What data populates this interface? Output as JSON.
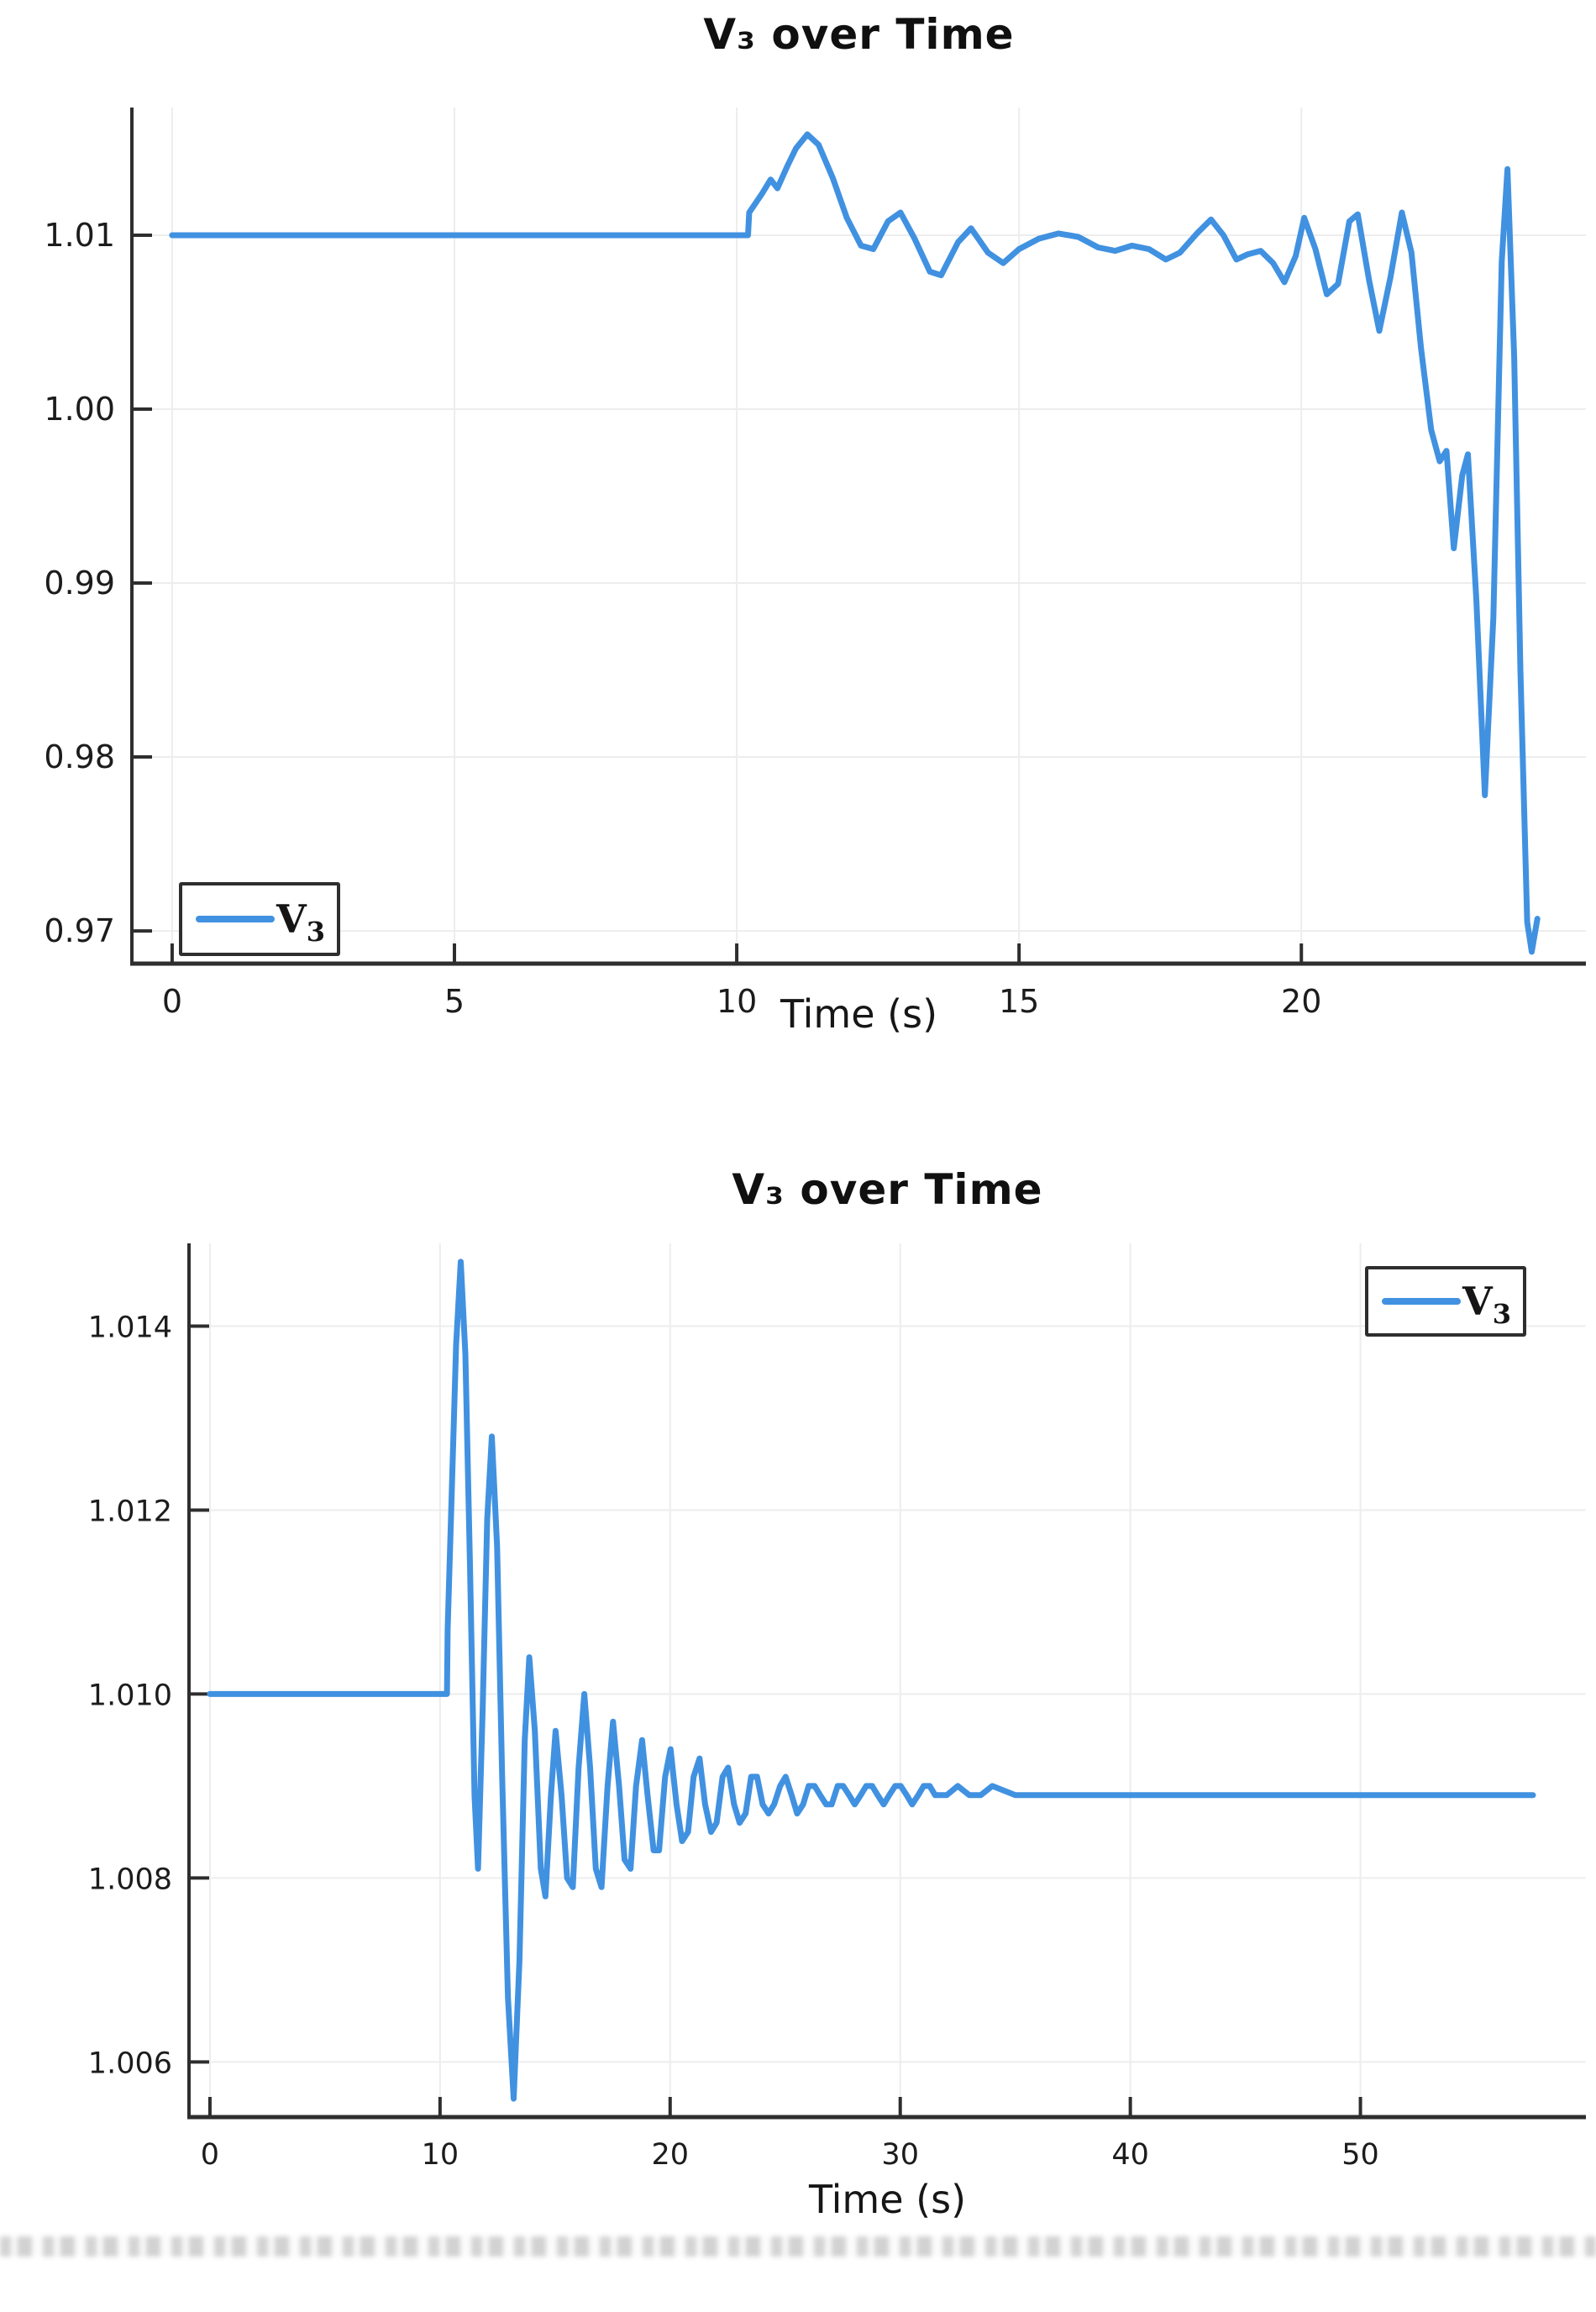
{
  "page": {
    "background": "#ffffff"
  },
  "chart_data": [
    {
      "type": "line",
      "title": "V₃ over Time",
      "xlabel": "Time (s)",
      "ylabel": "",
      "grid": true,
      "legend": {
        "label": "V₃",
        "label_main": "V",
        "label_sub": "3",
        "position": "bottom-left"
      },
      "line_color": "#4191E1",
      "grid_color": "#ededed",
      "axis_color": "#2e2e2e",
      "xlim": [
        -0.713,
        25.04
      ],
      "ylim": [
        0.96812,
        1.01734
      ],
      "x_ticks": [
        {
          "v": 0,
          "label": "0"
        },
        {
          "v": 5,
          "label": "5"
        },
        {
          "v": 10,
          "label": "10"
        },
        {
          "v": 15,
          "label": "15"
        },
        {
          "v": 20,
          "label": "20"
        }
      ],
      "y_ticks": [
        {
          "v": 1.01,
          "label": "1.01"
        },
        {
          "v": 1.0,
          "label": "1.00"
        },
        {
          "v": 0.99,
          "label": "0.99"
        },
        {
          "v": 0.98,
          "label": "0.98"
        },
        {
          "v": 0.97,
          "label": "0.97"
        }
      ],
      "series": [
        {
          "name": "V₃",
          "points": [
            [
              0,
              1.01
            ],
            [
              1,
              1.01
            ],
            [
              2,
              1.01
            ],
            [
              3,
              1.01
            ],
            [
              4,
              1.01
            ],
            [
              5,
              1.01
            ],
            [
              6,
              1.01
            ],
            [
              7,
              1.01
            ],
            [
              8,
              1.01
            ],
            [
              9,
              1.01
            ],
            [
              10.2,
              1.01
            ],
            [
              10.22,
              1.0113
            ],
            [
              10.45,
              1.0124
            ],
            [
              10.6,
              1.0132
            ],
            [
              10.72,
              1.0127
            ],
            [
              10.9,
              1.014
            ],
            [
              11.05,
              1.015
            ],
            [
              11.25,
              1.0158
            ],
            [
              11.45,
              1.0152
            ],
            [
              11.7,
              1.0133
            ],
            [
              11.95,
              1.011
            ],
            [
              12.2,
              1.0094
            ],
            [
              12.42,
              1.0092
            ],
            [
              12.68,
              1.0108
            ],
            [
              12.9,
              1.0113
            ],
            [
              13.15,
              1.0098
            ],
            [
              13.42,
              1.0079
            ],
            [
              13.62,
              1.0077
            ],
            [
              13.92,
              1.0096
            ],
            [
              14.15,
              1.0104
            ],
            [
              14.45,
              1.009
            ],
            [
              14.72,
              1.0084
            ],
            [
              15.0,
              1.0092
            ],
            [
              15.35,
              1.0098
            ],
            [
              15.7,
              1.0101
            ],
            [
              16.05,
              1.0099
            ],
            [
              16.4,
              1.0093
            ],
            [
              16.7,
              1.0091
            ],
            [
              17.0,
              1.0094
            ],
            [
              17.3,
              1.0092
            ],
            [
              17.6,
              1.0086
            ],
            [
              17.85,
              1.009
            ],
            [
              18.15,
              1.0101
            ],
            [
              18.4,
              1.0109
            ],
            [
              18.62,
              1.01
            ],
            [
              18.85,
              1.0086
            ],
            [
              19.05,
              1.0089
            ],
            [
              19.28,
              1.0091
            ],
            [
              19.5,
              1.0084
            ],
            [
              19.7,
              1.0073
            ],
            [
              19.9,
              1.0088
            ],
            [
              20.05,
              1.011
            ],
            [
              20.25,
              1.0092
            ],
            [
              20.45,
              1.0066
            ],
            [
              20.65,
              1.0072
            ],
            [
              20.85,
              1.0108
            ],
            [
              21.0,
              1.0112
            ],
            [
              21.2,
              1.0074
            ],
            [
              21.38,
              1.0045
            ],
            [
              21.58,
              1.0076
            ],
            [
              21.78,
              1.0113
            ],
            [
              21.95,
              1.009
            ],
            [
              22.12,
              1.0035
            ],
            [
              22.3,
              0.9988
            ],
            [
              22.45,
              0.997
            ],
            [
              22.57,
              0.9976
            ],
            [
              22.7,
              0.992
            ],
            [
              22.85,
              0.9962
            ],
            [
              22.95,
              0.9974
            ],
            [
              23.1,
              0.989
            ],
            [
              23.25,
              0.9778
            ],
            [
              23.4,
              0.988
            ],
            [
              23.55,
              1.0085
            ],
            [
              23.65,
              1.0138
            ],
            [
              23.77,
              1.003
            ],
            [
              23.88,
              0.985
            ],
            [
              24.0,
              0.9705
            ],
            [
              24.08,
              0.9688
            ],
            [
              24.18,
              0.9707
            ]
          ]
        }
      ]
    },
    {
      "type": "line",
      "title": "V₃ over Time",
      "xlabel": "Time (s)",
      "ylabel": "",
      "grid": true,
      "legend": {
        "label": "V₃",
        "label_main": "V",
        "label_sub": "3",
        "position": "top-right"
      },
      "line_color": "#4191E1",
      "grid_color": "#ededed",
      "axis_color": "#2e2e2e",
      "xlim": [
        -0.91,
        59.8
      ],
      "ylim": [
        1.0054,
        1.0149
      ],
      "x_ticks": [
        {
          "v": 0,
          "label": "0"
        },
        {
          "v": 10,
          "label": "10"
        },
        {
          "v": 20,
          "label": "20"
        },
        {
          "v": 30,
          "label": "30"
        },
        {
          "v": 40,
          "label": "40"
        },
        {
          "v": 50,
          "label": "50"
        }
      ],
      "y_ticks": [
        {
          "v": 1.014,
          "label": "1.014"
        },
        {
          "v": 1.012,
          "label": "1.012"
        },
        {
          "v": 1.01,
          "label": "1.010"
        },
        {
          "v": 1.008,
          "label": "1.008"
        },
        {
          "v": 1.006,
          "label": "1.006"
        }
      ],
      "series": [
        {
          "name": "V₃",
          "points": [
            [
              0,
              1.01
            ],
            [
              2,
              1.01
            ],
            [
              4,
              1.01
            ],
            [
              6,
              1.01
            ],
            [
              8,
              1.01
            ],
            [
              10.3,
              1.01
            ],
            [
              10.33,
              1.0107
            ],
            [
              10.5,
              1.0121
            ],
            [
              10.7,
              1.0138
            ],
            [
              10.9,
              1.0147
            ],
            [
              11.1,
              1.0137
            ],
            [
              11.3,
              1.0114
            ],
            [
              11.5,
              1.0089
            ],
            [
              11.65,
              1.0081
            ],
            [
              11.85,
              1.0098
            ],
            [
              12.05,
              1.0119
            ],
            [
              12.25,
              1.0128
            ],
            [
              12.48,
              1.0116
            ],
            [
              12.7,
              1.0091
            ],
            [
              12.95,
              1.0067
            ],
            [
              13.2,
              1.0056
            ],
            [
              13.45,
              1.0071
            ],
            [
              13.68,
              1.0095
            ],
            [
              13.88,
              1.0104
            ],
            [
              14.12,
              1.0096
            ],
            [
              14.38,
              1.0081
            ],
            [
              14.58,
              1.0078
            ],
            [
              14.82,
              1.0089
            ],
            [
              15.02,
              1.0096
            ],
            [
              15.28,
              1.0089
            ],
            [
              15.52,
              1.008
            ],
            [
              15.77,
              1.0079
            ],
            [
              16.02,
              1.0092
            ],
            [
              16.27,
              1.01
            ],
            [
              16.52,
              1.0092
            ],
            [
              16.77,
              1.0081
            ],
            [
              17.02,
              1.0079
            ],
            [
              17.28,
              1.009
            ],
            [
              17.52,
              1.0097
            ],
            [
              17.78,
              1.009
            ],
            [
              18.02,
              1.0082
            ],
            [
              18.28,
              1.0081
            ],
            [
              18.52,
              1.009
            ],
            [
              18.78,
              1.0095
            ],
            [
              19.02,
              1.0089
            ],
            [
              19.28,
              1.0083
            ],
            [
              19.52,
              1.0083
            ],
            [
              19.78,
              1.0091
            ],
            [
              20.02,
              1.0094
            ],
            [
              20.28,
              1.0088
            ],
            [
              20.52,
              1.0084
            ],
            [
              20.78,
              1.0085
            ],
            [
              21.02,
              1.0091
            ],
            [
              21.28,
              1.0093
            ],
            [
              21.52,
              1.0088
            ],
            [
              21.78,
              1.0085
            ],
            [
              22.02,
              1.0086
            ],
            [
              22.28,
              1.0091
            ],
            [
              22.52,
              1.0092
            ],
            [
              22.78,
              1.0088
            ],
            [
              23.02,
              1.0086
            ],
            [
              23.28,
              1.0087
            ],
            [
              23.52,
              1.0091
            ],
            [
              23.78,
              1.0091
            ],
            [
              24.02,
              1.0088
            ],
            [
              24.28,
              1.0087
            ],
            [
              24.52,
              1.0088
            ],
            [
              24.78,
              1.009
            ],
            [
              25.02,
              1.0091
            ],
            [
              25.28,
              1.0089
            ],
            [
              25.52,
              1.0087
            ],
            [
              25.78,
              1.0088
            ],
            [
              26.02,
              1.009
            ],
            [
              26.28,
              1.009
            ],
            [
              26.52,
              1.0089
            ],
            [
              26.78,
              1.0088
            ],
            [
              27.02,
              1.0088
            ],
            [
              27.28,
              1.009
            ],
            [
              27.52,
              1.009
            ],
            [
              27.78,
              1.0089
            ],
            [
              28.02,
              1.0088
            ],
            [
              28.28,
              1.0089
            ],
            [
              28.52,
              1.009
            ],
            [
              28.78,
              1.009
            ],
            [
              29.02,
              1.0089
            ],
            [
              29.28,
              1.0088
            ],
            [
              29.52,
              1.0089
            ],
            [
              29.78,
              1.009
            ],
            [
              30.02,
              1.009
            ],
            [
              30.28,
              1.0089
            ],
            [
              30.52,
              1.0088
            ],
            [
              30.78,
              1.0089
            ],
            [
              31.02,
              1.009
            ],
            [
              31.28,
              1.009
            ],
            [
              31.52,
              1.0089
            ],
            [
              31.78,
              1.0089
            ],
            [
              32.02,
              1.0089
            ],
            [
              32.5,
              1.009
            ],
            [
              33,
              1.0089
            ],
            [
              33.5,
              1.0089
            ],
            [
              34,
              1.009
            ],
            [
              35,
              1.0089
            ],
            [
              36,
              1.0089
            ],
            [
              37,
              1.0089
            ],
            [
              38,
              1.0089
            ],
            [
              39,
              1.0089
            ],
            [
              40,
              1.0089
            ],
            [
              42,
              1.0089
            ],
            [
              44,
              1.0089
            ],
            [
              46,
              1.0089
            ],
            [
              48,
              1.0089
            ],
            [
              50,
              1.0089
            ],
            [
              52,
              1.0089
            ],
            [
              54,
              1.0089
            ],
            [
              56,
              1.0089
            ],
            [
              57.5,
              1.0089
            ]
          ]
        }
      ]
    }
  ]
}
